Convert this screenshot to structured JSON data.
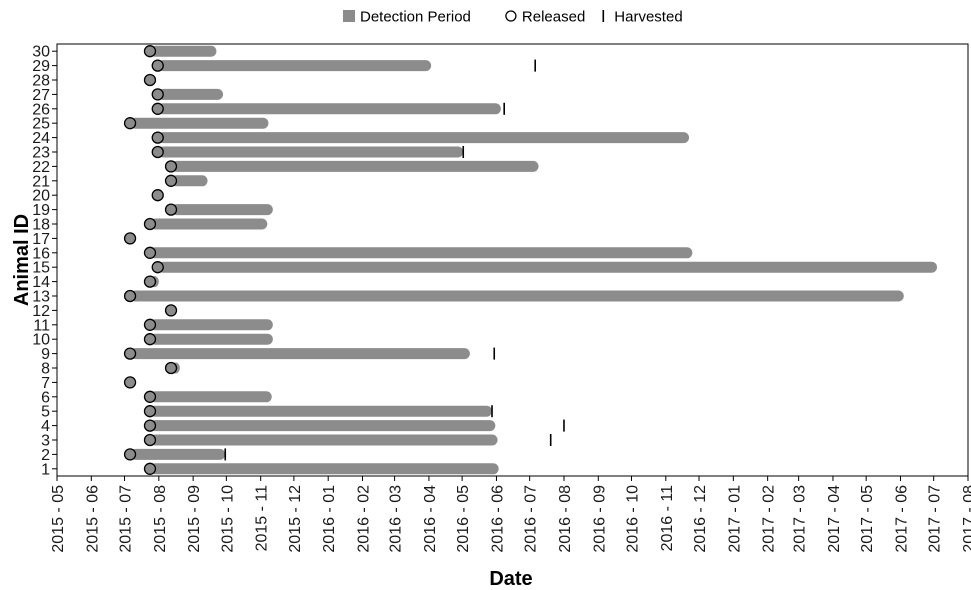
{
  "chart_data": {
    "type": "gantt",
    "xlabel": "Date",
    "ylabel": "Animal ID",
    "x_ticks": [
      "2015 - 05",
      "2015 - 06",
      "2015 - 07",
      "2015 - 08",
      "2015 - 09",
      "2015 - 10",
      "2015 - 11",
      "2015 - 12",
      "2016 - 01",
      "2016 - 02",
      "2016 - 03",
      "2016 - 04",
      "2016 - 05",
      "2016 - 06",
      "2016 - 07",
      "2016 - 08",
      "2016 - 09",
      "2016 - 10",
      "2016 - 11",
      "2016 - 12",
      "2017 - 01",
      "2017 - 02",
      "2017 - 03",
      "2017 - 04",
      "2017 - 05",
      "2017 - 06",
      "2017 - 07",
      "2017 - 08"
    ],
    "y_ticks": [
      "1",
      "2",
      "3",
      "4",
      "5",
      "6",
      "7",
      "8",
      "9",
      "10",
      "11",
      "12",
      "13",
      "14",
      "15",
      "16",
      "17",
      "18",
      "19",
      "20",
      "21",
      "22",
      "23",
      "24",
      "25",
      "26",
      "27",
      "28",
      "29",
      "30"
    ],
    "xlim": [
      "2015-05-01",
      "2017-08-01"
    ],
    "ylim": [
      0.5,
      30.5
    ],
    "legend": {
      "position": "top",
      "items": [
        {
          "label": "Detection Period",
          "marker": "square"
        },
        {
          "label": "Released",
          "marker": "circle"
        },
        {
          "label": "Harvested",
          "marker": "tick"
        }
      ]
    },
    "colors": {
      "bar": "#8c8c8c",
      "released_fill": "#8c8c8c",
      "released_stroke": "#000000",
      "harvested": "#000000"
    },
    "animals": [
      {
        "id": 1,
        "released": "2015-07-24",
        "detection_end": "2016-06-03",
        "harvested": null
      },
      {
        "id": 2,
        "released": "2015-07-06",
        "detection_end": "2015-09-30",
        "harvested": "2015-09-30"
      },
      {
        "id": 3,
        "released": "2015-07-24",
        "detection_end": "2016-06-02",
        "harvested": "2016-07-20"
      },
      {
        "id": 4,
        "released": "2015-07-24",
        "detection_end": "2016-05-31",
        "harvested": "2016-08-01"
      },
      {
        "id": 5,
        "released": "2015-07-24",
        "detection_end": "2016-05-28",
        "harvested": "2016-05-28"
      },
      {
        "id": 6,
        "released": "2015-07-24",
        "detection_end": "2015-11-11",
        "harvested": null
      },
      {
        "id": 7,
        "released": "2015-07-06",
        "detection_end": "2015-07-10",
        "harvested": null
      },
      {
        "id": 8,
        "released": "2015-08-12",
        "detection_end": "2015-08-20",
        "harvested": null
      },
      {
        "id": 9,
        "released": "2015-07-06",
        "detection_end": "2016-05-08",
        "harvested": "2016-05-30"
      },
      {
        "id": 10,
        "released": "2015-07-24",
        "detection_end": "2015-11-12",
        "harvested": null
      },
      {
        "id": 11,
        "released": "2015-07-24",
        "detection_end": "2015-11-12",
        "harvested": null
      },
      {
        "id": 12,
        "released": "2015-08-12",
        "detection_end": "2015-08-15",
        "harvested": null
      },
      {
        "id": 13,
        "released": "2015-07-06",
        "detection_end": "2017-06-04",
        "harvested": null
      },
      {
        "id": 14,
        "released": "2015-07-24",
        "detection_end": "2015-08-01",
        "harvested": null
      },
      {
        "id": 15,
        "released": "2015-07-31",
        "detection_end": "2017-07-04",
        "harvested": null
      },
      {
        "id": 16,
        "released": "2015-07-24",
        "detection_end": "2016-11-25",
        "harvested": null
      },
      {
        "id": 17,
        "released": "2015-07-06",
        "detection_end": "2015-07-06",
        "harvested": null
      },
      {
        "id": 18,
        "released": "2015-07-24",
        "detection_end": "2015-11-07",
        "harvested": null
      },
      {
        "id": 19,
        "released": "2015-08-12",
        "detection_end": "2015-11-12",
        "harvested": null
      },
      {
        "id": 20,
        "released": "2015-07-31",
        "detection_end": "2015-07-31",
        "harvested": null
      },
      {
        "id": 21,
        "released": "2015-08-12",
        "detection_end": "2015-09-14",
        "harvested": null
      },
      {
        "id": 22,
        "released": "2015-08-12",
        "detection_end": "2016-07-09",
        "harvested": null
      },
      {
        "id": 23,
        "released": "2015-07-31",
        "detection_end": "2016-05-02",
        "harvested": "2016-05-02"
      },
      {
        "id": 24,
        "released": "2015-07-31",
        "detection_end": "2016-11-22",
        "harvested": null
      },
      {
        "id": 25,
        "released": "2015-07-06",
        "detection_end": "2015-11-08",
        "harvested": null
      },
      {
        "id": 26,
        "released": "2015-07-31",
        "detection_end": "2016-06-05",
        "harvested": "2016-06-08"
      },
      {
        "id": 27,
        "released": "2015-07-31",
        "detection_end": "2015-09-28",
        "harvested": null
      },
      {
        "id": 28,
        "released": "2015-07-24",
        "detection_end": "2015-07-24",
        "harvested": null
      },
      {
        "id": 29,
        "released": "2015-07-31",
        "detection_end": "2016-04-03",
        "harvested": "2016-07-06"
      },
      {
        "id": 30,
        "released": "2015-07-24",
        "detection_end": "2015-09-22",
        "harvested": null
      }
    ]
  }
}
